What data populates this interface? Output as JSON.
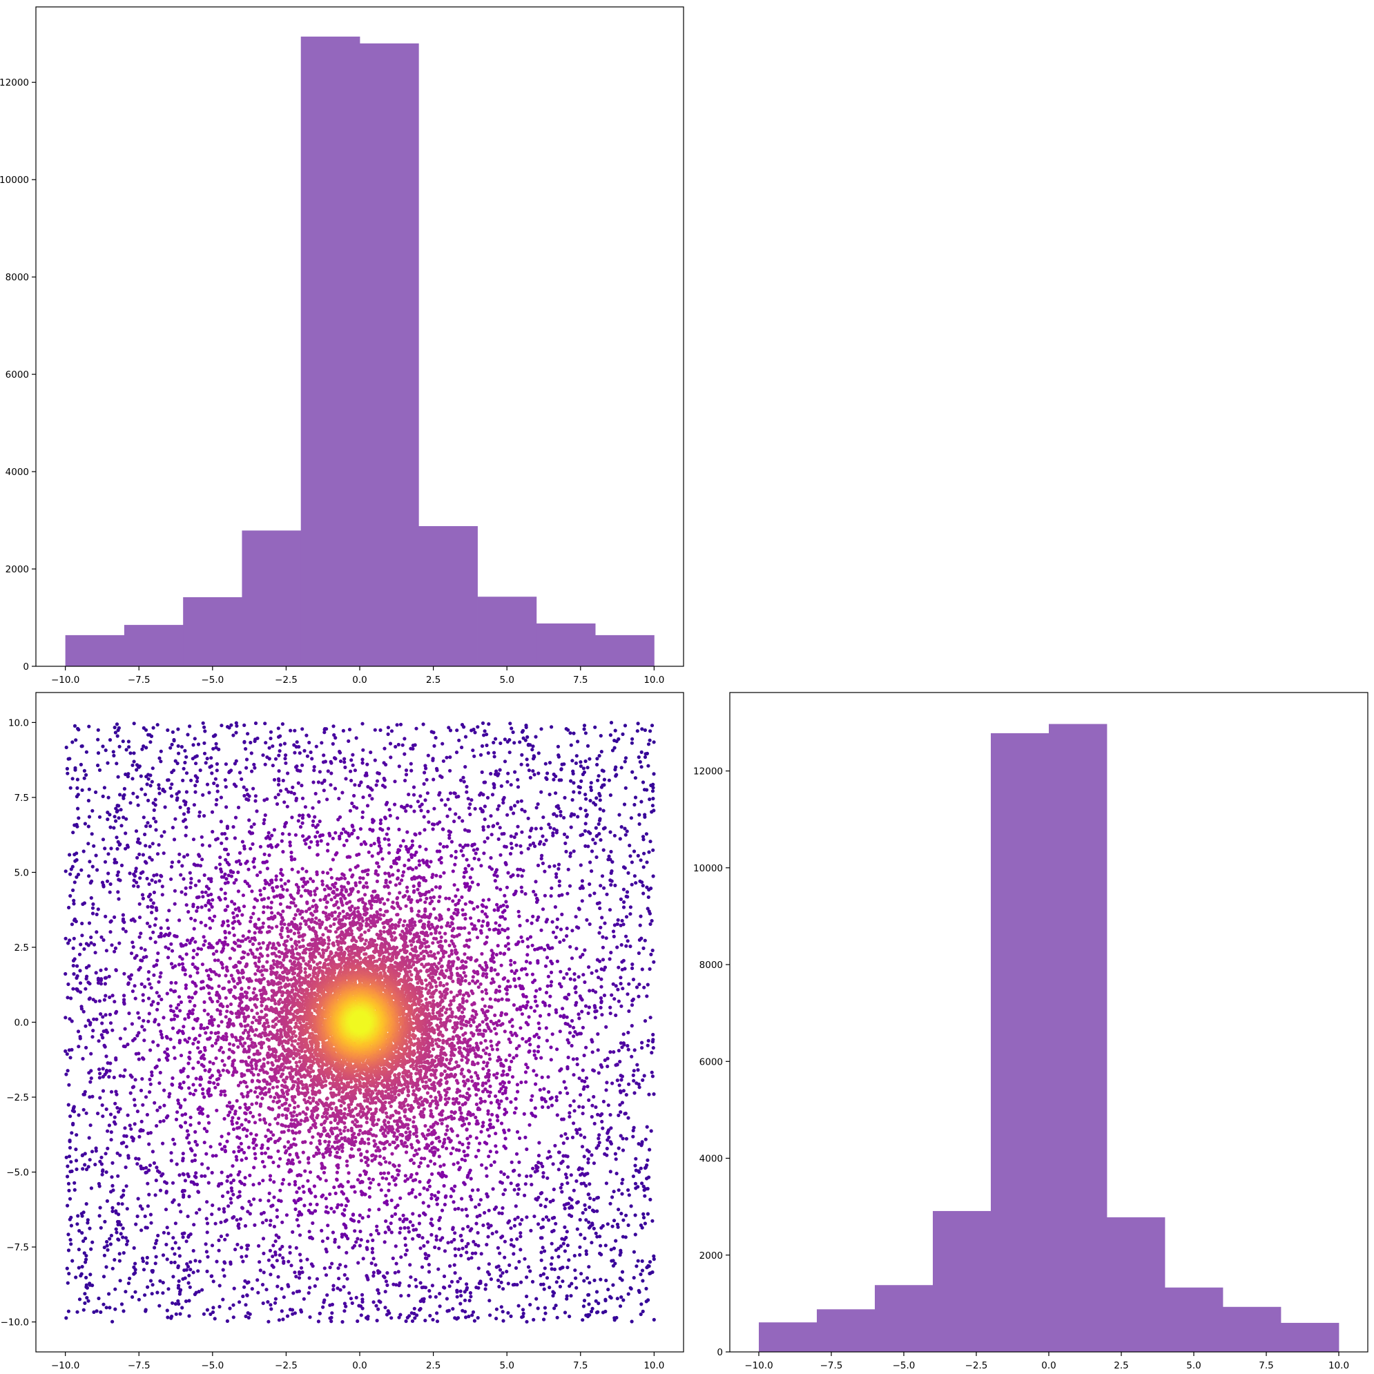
{
  "chart_data": [
    {
      "type": "bar",
      "panel": "top-left",
      "bin_edges": [
        -10,
        -8,
        -6,
        -4,
        -2,
        0,
        2,
        4,
        6,
        8,
        10
      ],
      "values": [
        640,
        850,
        1420,
        2790,
        12940,
        12800,
        2880,
        1430,
        880,
        640
      ],
      "color": "#9467bd",
      "xlim": [
        -11,
        11
      ],
      "ylim": [
        0,
        13550
      ],
      "xticks": [
        -10,
        -7.5,
        -5,
        -2.5,
        0,
        2.5,
        5,
        7.5,
        10
      ],
      "xtick_labels": [
        "−10.0",
        "−7.5",
        "−5.0",
        "−2.5",
        "0.0",
        "2.5",
        "5.0",
        "7.5",
        "10.0"
      ],
      "yticks": [
        0,
        2000,
        4000,
        6000,
        8000,
        10000,
        12000
      ],
      "ytick_labels": [
        "0",
        "2000",
        "4000",
        "6000",
        "8000",
        "10000",
        "12000"
      ],
      "title": "",
      "xlabel": "",
      "ylabel": ""
    },
    {
      "type": "scatter",
      "panel": "bottom-left",
      "description_of_points": "uniform random points in [-10,10]x[-10,10], denser near origin; colored by density with the plasma colormap (dark purple at low density to yellow at the center)",
      "colormap": "plasma",
      "x_range": [
        -10,
        10
      ],
      "y_range": [
        -10,
        10
      ],
      "center": [
        0,
        0
      ],
      "xlim": [
        -11,
        11
      ],
      "ylim": [
        -11,
        11
      ],
      "xticks": [
        -10,
        -7.5,
        -5,
        -2.5,
        0,
        2.5,
        5,
        7.5,
        10
      ],
      "xtick_labels": [
        "−10.0",
        "−7.5",
        "−5.0",
        "−2.5",
        "0.0",
        "2.5",
        "5.0",
        "7.5",
        "10.0"
      ],
      "yticks": [
        -10,
        -7.5,
        -5,
        -2.5,
        0,
        2.5,
        5,
        7.5,
        10
      ],
      "ytick_labels": [
        "−10.0",
        "−7.5",
        "−5.0",
        "−2.5",
        "0.0",
        "2.5",
        "5.0",
        "7.5",
        "10.0"
      ],
      "title": "",
      "xlabel": "",
      "ylabel": ""
    },
    {
      "type": "bar",
      "panel": "bottom-right",
      "bin_edges": [
        -10,
        -8,
        -6,
        -4,
        -2,
        0,
        2,
        4,
        6,
        8,
        10
      ],
      "values": [
        610,
        880,
        1380,
        2910,
        12780,
        12970,
        2780,
        1330,
        930,
        600
      ],
      "color": "#9467bd",
      "xlim": [
        -11,
        11
      ],
      "ylim": [
        0,
        13620
      ],
      "xticks": [
        -10,
        -7.5,
        -5,
        -2.5,
        0,
        2.5,
        5,
        7.5,
        10
      ],
      "xtick_labels": [
        "−10.0",
        "−7.5",
        "−5.0",
        "−2.5",
        "0.0",
        "2.5",
        "5.0",
        "7.5",
        "10.0"
      ],
      "yticks": [
        0,
        2000,
        4000,
        6000,
        8000,
        10000,
        12000
      ],
      "ytick_labels": [
        "0",
        "2000",
        "4000",
        "6000",
        "8000",
        "10000",
        "12000"
      ],
      "title": "",
      "xlabel": "",
      "ylabel": ""
    }
  ]
}
